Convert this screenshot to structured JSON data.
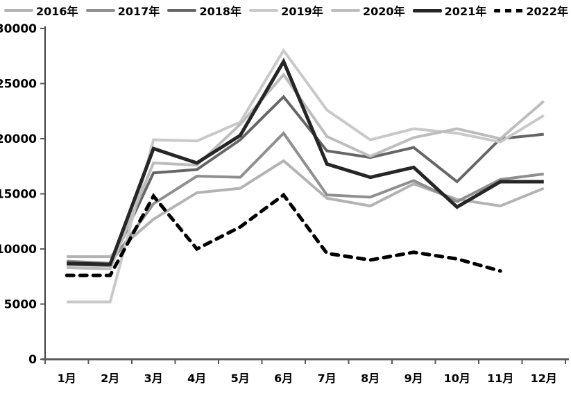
{
  "chart_data": {
    "type": "line",
    "title": "",
    "xlabel": "",
    "ylabel": "",
    "x_labels": [
      "1月",
      "2月",
      "3月",
      "4月",
      "5月",
      "6月",
      "7月",
      "8月",
      "9月",
      "10月",
      "11月",
      "12月"
    ],
    "y_ticks": [
      0,
      5000,
      10000,
      15000,
      20000,
      25000,
      30000
    ],
    "ylim": [
      0,
      30000
    ],
    "grid": false,
    "legend_position": "top",
    "axis_color": "#595959",
    "background_color": "#ffffff",
    "series": [
      {
        "name": "2016年",
        "color": "#b3b3b3",
        "width": 4,
        "dash": false,
        "values": [
          9300,
          9300,
          12700,
          15100,
          15500,
          18000,
          14600,
          13900,
          15900,
          14500,
          13900,
          15500
        ]
      },
      {
        "name": "2017年",
        "color": "#8f8f8f",
        "width": 4,
        "dash": false,
        "values": [
          8900,
          8700,
          14100,
          16600,
          16500,
          20500,
          14900,
          14700,
          16200,
          14300,
          16300,
          16800
        ]
      },
      {
        "name": "2018年",
        "color": "#666666",
        "width": 4,
        "dash": false,
        "values": [
          8600,
          8500,
          16900,
          17200,
          19900,
          23800,
          18900,
          18300,
          19200,
          16100,
          20000,
          20400
        ]
      },
      {
        "name": "2019年",
        "color": "#c9c9c9",
        "width": 4,
        "dash": false,
        "values": [
          5200,
          5200,
          19900,
          19800,
          21500,
          28000,
          22600,
          19900,
          20900,
          20500,
          19700,
          22100
        ]
      },
      {
        "name": "2020年",
        "color": "#bdbdbd",
        "width": 4,
        "dash": false,
        "values": [
          8300,
          8200,
          17800,
          17600,
          21300,
          25800,
          20200,
          18400,
          20100,
          20900,
          20000,
          23400
        ]
      },
      {
        "name": "2021年",
        "color": "#262626",
        "width": 5,
        "dash": false,
        "values": [
          8700,
          8600,
          19100,
          17800,
          20300,
          27000,
          17700,
          16500,
          17400,
          13800,
          16100,
          16100
        ]
      },
      {
        "name": "2022年",
        "color": "#000000",
        "width": 5,
        "dash": true,
        "values": [
          7600,
          7600,
          14800,
          10000,
          12000,
          14900,
          9600,
          9000,
          9700,
          9100,
          8000,
          null
        ]
      }
    ]
  }
}
